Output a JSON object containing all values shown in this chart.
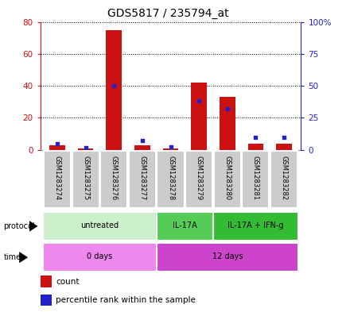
{
  "title": "GDS5817 / 235794_at",
  "samples": [
    "GSM1283274",
    "GSM1283275",
    "GSM1283276",
    "GSM1283277",
    "GSM1283278",
    "GSM1283279",
    "GSM1283280",
    "GSM1283281",
    "GSM1283282"
  ],
  "counts": [
    3,
    1,
    75,
    3,
    1,
    42,
    33,
    4,
    4
  ],
  "percentile_ranks": [
    5,
    1.5,
    50,
    7,
    2,
    38,
    32,
    10,
    10
  ],
  "ylim_left": [
    0,
    80
  ],
  "ylim_right": [
    0,
    100
  ],
  "yticks_left": [
    0,
    20,
    40,
    60,
    80
  ],
  "yticks_left_labels": [
    "0",
    "20",
    "40",
    "60",
    "80"
  ],
  "yticks_right": [
    0,
    25,
    50,
    75,
    100
  ],
  "yticks_right_labels": [
    "0",
    "25",
    "50",
    "75",
    "100%"
  ],
  "bar_color": "#cc1111",
  "dot_color": "#2222cc",
  "protocol_groups": [
    {
      "label": "untreated",
      "start": 0,
      "end": 4,
      "color": "#ccf0cc"
    },
    {
      "label": "IL-17A",
      "start": 4,
      "end": 6,
      "color": "#55cc55"
    },
    {
      "label": "IL-17A + IFN-g",
      "start": 6,
      "end": 9,
      "color": "#33bb33"
    }
  ],
  "time_groups": [
    {
      "label": "0 days",
      "start": 0,
      "end": 4,
      "color": "#ee88ee"
    },
    {
      "label": "12 days",
      "start": 4,
      "end": 9,
      "color": "#cc44cc"
    }
  ],
  "legend_count_color": "#cc1111",
  "legend_percentile_color": "#2222cc",
  "grid_color": "#000000",
  "bar_width": 0.55,
  "background_color": "#ffffff",
  "plot_bg_color": "#ffffff",
  "sample_bg_color": "#cccccc",
  "sample_border_color": "#ffffff"
}
